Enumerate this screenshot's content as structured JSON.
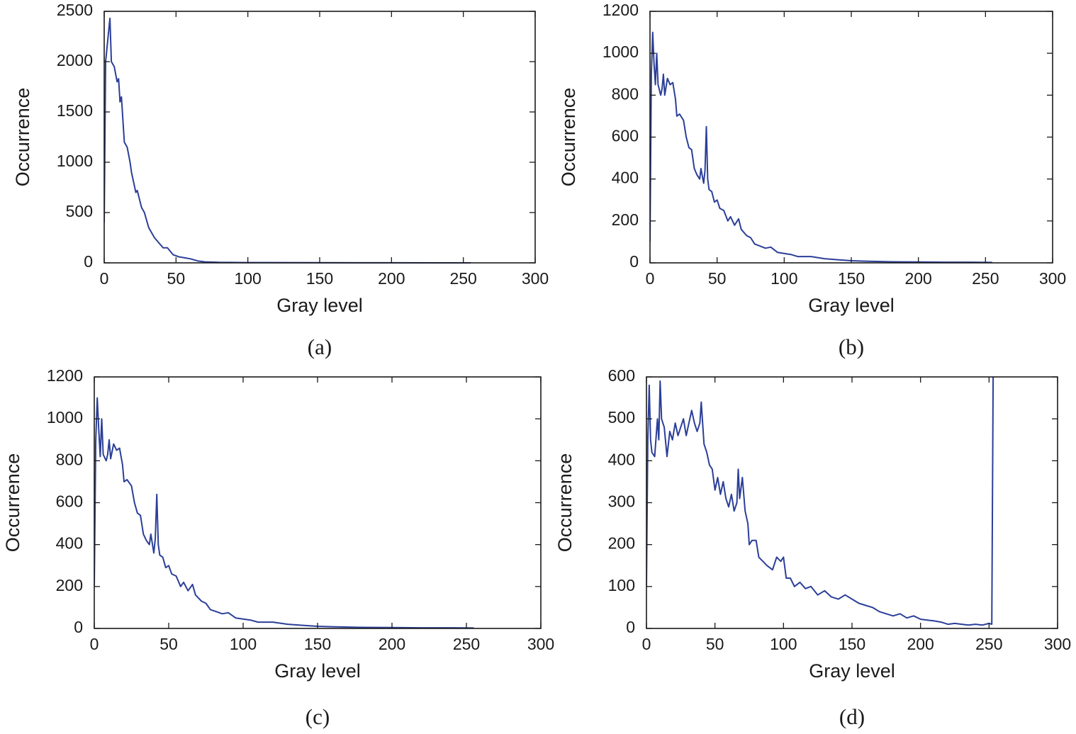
{
  "chart_data": [
    {
      "type": "line",
      "caption": "(a)",
      "xlabel": "Gray level",
      "ylabel": "Occurrence",
      "xlim": [
        0,
        300
      ],
      "ylim": [
        0,
        2500
      ],
      "xticks": [
        0,
        50,
        100,
        150,
        200,
        250,
        300
      ],
      "yticks": [
        0,
        500,
        1000,
        1500,
        2000,
        2500
      ],
      "series": [
        {
          "color": "#2b3f98",
          "x": [
            0,
            1,
            4,
            5,
            7,
            9,
            10,
            11,
            12,
            14,
            16,
            18,
            19,
            22,
            23,
            26,
            28,
            31,
            35,
            38,
            41,
            44,
            48,
            52,
            56,
            60,
            65,
            70,
            80,
            100,
            150,
            200,
            255
          ],
          "values": [
            400,
            2000,
            2430,
            2000,
            1950,
            1800,
            1830,
            1600,
            1650,
            1200,
            1150,
            1000,
            900,
            700,
            720,
            550,
            500,
            350,
            250,
            200,
            150,
            150,
            80,
            60,
            50,
            40,
            20,
            10,
            5,
            3,
            2,
            1,
            0
          ]
        }
      ]
    },
    {
      "type": "line",
      "caption": "(b)",
      "xlabel": "Gray level",
      "ylabel": "Occurrence",
      "xlim": [
        0,
        300
      ],
      "ylim": [
        0,
        1200
      ],
      "xticks": [
        0,
        50,
        100,
        150,
        200,
        250,
        300
      ],
      "yticks": [
        0,
        200,
        400,
        600,
        800,
        1000,
        1200
      ],
      "series": [
        {
          "color": "#2b3f98",
          "x": [
            0,
            1,
            2,
            3,
            4,
            5,
            6,
            8,
            9,
            10,
            11,
            13,
            15,
            17,
            19,
            20,
            22,
            25,
            27,
            29,
            31,
            33,
            35,
            37,
            38,
            40,
            41,
            42,
            43,
            44,
            46,
            48,
            50,
            52,
            55,
            58,
            60,
            63,
            66,
            68,
            72,
            75,
            78,
            82,
            86,
            90,
            95,
            100,
            105,
            110,
            120,
            130,
            140,
            150,
            160,
            180,
            200,
            220,
            240,
            255
          ],
          "values": [
            100,
            900,
            1100,
            950,
            850,
            1000,
            850,
            800,
            830,
            900,
            800,
            880,
            850,
            860,
            780,
            700,
            710,
            680,
            600,
            550,
            540,
            450,
            420,
            400,
            450,
            380,
            440,
            650,
            400,
            350,
            340,
            290,
            300,
            260,
            250,
            200,
            220,
            180,
            210,
            160,
            130,
            120,
            90,
            80,
            70,
            75,
            50,
            45,
            40,
            30,
            30,
            20,
            15,
            10,
            8,
            5,
            4,
            3,
            3,
            2
          ]
        }
      ]
    },
    {
      "type": "line",
      "caption": "(c)",
      "xlabel": "Gray level",
      "ylabel": "Occurrence",
      "xlim": [
        0,
        300
      ],
      "ylim": [
        0,
        1200
      ],
      "xticks": [
        0,
        50,
        100,
        150,
        200,
        250,
        300
      ],
      "yticks": [
        0,
        200,
        400,
        600,
        800,
        1000,
        1200
      ],
      "series": [
        {
          "color": "#2b3f98",
          "x": [
            0,
            1,
            2,
            3,
            4,
            5,
            6,
            8,
            9,
            10,
            11,
            13,
            15,
            17,
            19,
            20,
            22,
            25,
            27,
            29,
            31,
            33,
            35,
            37,
            38,
            40,
            41,
            42,
            43,
            44,
            46,
            48,
            50,
            52,
            55,
            58,
            60,
            63,
            66,
            68,
            72,
            75,
            78,
            82,
            86,
            90,
            95,
            100,
            105,
            110,
            120,
            130,
            140,
            150,
            160,
            180,
            200,
            220,
            240,
            255
          ],
          "values": [
            200,
            900,
            1100,
            950,
            820,
            1000,
            830,
            800,
            830,
            900,
            810,
            880,
            850,
            860,
            780,
            700,
            710,
            680,
            600,
            550,
            540,
            450,
            420,
            400,
            450,
            360,
            430,
            640,
            400,
            350,
            340,
            290,
            300,
            260,
            250,
            200,
            220,
            180,
            210,
            160,
            130,
            120,
            90,
            80,
            70,
            75,
            50,
            45,
            40,
            30,
            30,
            20,
            15,
            10,
            8,
            5,
            4,
            3,
            3,
            2
          ]
        }
      ]
    },
    {
      "type": "line",
      "caption": "(d)",
      "xlabel": "Gray level",
      "ylabel": "Occurrence",
      "xlim": [
        0,
        300
      ],
      "ylim": [
        0,
        600
      ],
      "xticks": [
        0,
        50,
        100,
        150,
        200,
        250,
        300
      ],
      "yticks": [
        0,
        100,
        200,
        300,
        400,
        500,
        600
      ],
      "series": [
        {
          "color": "#2b3f98",
          "x": [
            0,
            1,
            2,
            3,
            4,
            6,
            8,
            9,
            10,
            11,
            13,
            15,
            17,
            19,
            21,
            23,
            25,
            27,
            29,
            31,
            33,
            35,
            37,
            39,
            40,
            42,
            44,
            46,
            48,
            50,
            52,
            54,
            56,
            58,
            60,
            62,
            64,
            66,
            67,
            68,
            70,
            72,
            74,
            75,
            77,
            80,
            82,
            85,
            88,
            92,
            95,
            98,
            100,
            102,
            105,
            108,
            112,
            116,
            120,
            125,
            130,
            135,
            140,
            145,
            150,
            155,
            160,
            165,
            170,
            175,
            180,
            185,
            190,
            195,
            200,
            205,
            210,
            215,
            220,
            225,
            230,
            235,
            240,
            245,
            250,
            252,
            253
          ],
          "values": [
            100,
            450,
            580,
            450,
            420,
            410,
            500,
            450,
            590,
            500,
            480,
            410,
            470,
            450,
            490,
            460,
            480,
            500,
            460,
            490,
            520,
            490,
            470,
            490,
            540,
            440,
            420,
            390,
            380,
            330,
            360,
            320,
            350,
            310,
            290,
            320,
            280,
            300,
            380,
            310,
            360,
            280,
            250,
            200,
            210,
            210,
            170,
            160,
            150,
            140,
            170,
            160,
            170,
            120,
            120,
            100,
            110,
            95,
            100,
            80,
            90,
            75,
            70,
            80,
            70,
            60,
            55,
            50,
            40,
            35,
            30,
            35,
            25,
            30,
            22,
            20,
            18,
            15,
            10,
            12,
            10,
            8,
            10,
            8,
            12,
            10,
            600
          ]
        }
      ]
    }
  ]
}
